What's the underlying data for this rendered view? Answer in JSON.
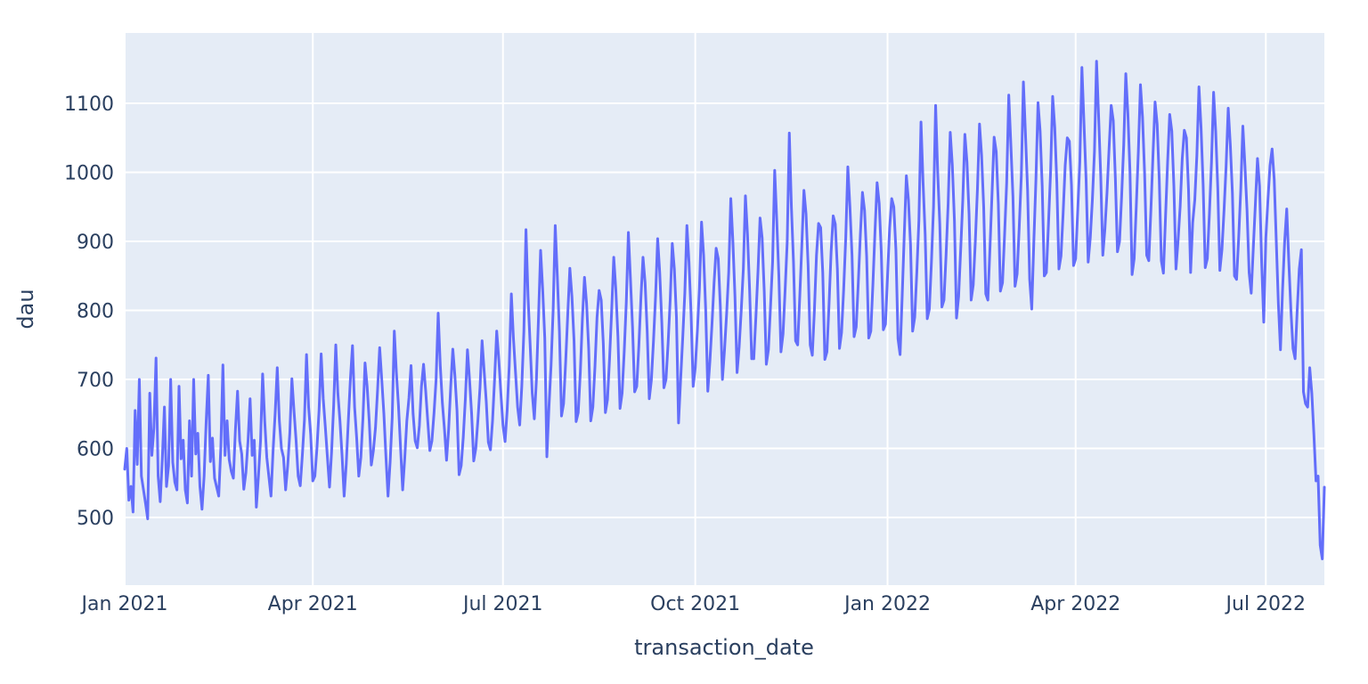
{
  "figure": {
    "kind": "plotly-style line figure",
    "title": ""
  },
  "colors": {
    "paper_bg": "#ffffff",
    "plot_bg": "#e5ecf6",
    "grid": "#ffffff",
    "line": "#636efa",
    "text": "#2a3f5f"
  },
  "chart_data": {
    "type": "line",
    "title": "",
    "xlabel": "transaction_date",
    "ylabel": "dau",
    "legend": false,
    "grid": true,
    "x_start_date": "2021-01-01",
    "x_frequency": "daily",
    "x_tick_labels": [
      "Jan 2021",
      "Apr 2021",
      "Jul 2021",
      "Oct 2021",
      "Jan 2022",
      "Apr 2022",
      "Jul 2022"
    ],
    "x_tick_days": [
      0,
      90,
      181,
      273,
      365,
      455,
      546
    ],
    "y_ticks": [
      500,
      600,
      700,
      800,
      900,
      1000,
      1100
    ],
    "y_range": [
      402,
      1202
    ],
    "x_range_days": [
      0,
      574
    ],
    "values": [
      570,
      600,
      525,
      545,
      508,
      655,
      577,
      700,
      560,
      540,
      520,
      498,
      680,
      590,
      630,
      731,
      560,
      523,
      585,
      660,
      545,
      575,
      700,
      580,
      551,
      540,
      690,
      585,
      612,
      540,
      521,
      640,
      560,
      700,
      592,
      622,
      545,
      512,
      560,
      640,
      706,
      581,
      615,
      557,
      544,
      531,
      601,
      721,
      590,
      640,
      584,
      567,
      557,
      628,
      683,
      611,
      592,
      541,
      565,
      610,
      672,
      590,
      612,
      515,
      560,
      611,
      708,
      640,
      587,
      559,
      531,
      597,
      651,
      717,
      640,
      600,
      587,
      540,
      575,
      622,
      701,
      655,
      612,
      560,
      546,
      590,
      641,
      736,
      660,
      620,
      553,
      560,
      601,
      655,
      737,
      672,
      631,
      587,
      544,
      595,
      663,
      750,
      680,
      640,
      590,
      531,
      577,
      640,
      701,
      749,
      660,
      615,
      560,
      587,
      644,
      724,
      690,
      640,
      576,
      597,
      630,
      685,
      746,
      700,
      651,
      588,
      531,
      580,
      645,
      770,
      710,
      662,
      601,
      540,
      586,
      640,
      673,
      720,
      650,
      611,
      601,
      633,
      690,
      722,
      684,
      640,
      597,
      611,
      651,
      700,
      796,
      720,
      666,
      628,
      583,
      628,
      690,
      744,
      705,
      655,
      562,
      575,
      616,
      672,
      743,
      700,
      650,
      582,
      600,
      641,
      688,
      756,
      712,
      668,
      609,
      598,
      640,
      701,
      770,
      729,
      680,
      634,
      610,
      655,
      720,
      824,
      760,
      710,
      660,
      634,
      690,
      770,
      917,
      820,
      750,
      680,
      643,
      700,
      790,
      887,
      830,
      760,
      588,
      660,
      720,
      800,
      923,
      850,
      770,
      647,
      665,
      726,
      795,
      861,
      820,
      756,
      639,
      652,
      710,
      788,
      848,
      810,
      745,
      640,
      660,
      718,
      790,
      829,
      815,
      752,
      652,
      671,
      730,
      800,
      877,
      830,
      762,
      658,
      680,
      740,
      812,
      913,
      845,
      775,
      682,
      690,
      748,
      818,
      877,
      840,
      770,
      672,
      699,
      755,
      820,
      904,
      855,
      782,
      688,
      700,
      752,
      815,
      897,
      860,
      790,
      637,
      700,
      760,
      825,
      923,
      870,
      795,
      690,
      717,
      770,
      832,
      928,
      880,
      800,
      683,
      726,
      780,
      840,
      890,
      875,
      805,
      700,
      743,
      795,
      855,
      962,
      900,
      820,
      710,
      747,
      800,
      860,
      966,
      910,
      830,
      730,
      730,
      790,
      856,
      934,
      905,
      828,
      722,
      743,
      805,
      870,
      1003,
      930,
      850,
      740,
      766,
      830,
      900,
      1057,
      950,
      870,
      756,
      750,
      820,
      895,
      974,
      940,
      865,
      750,
      735,
      800,
      880,
      926,
      920,
      855,
      729,
      740,
      808,
      885,
      937,
      925,
      860,
      745,
      768,
      830,
      905,
      1008,
      950,
      880,
      762,
      776,
      840,
      910,
      971,
      945,
      878,
      760,
      770,
      838,
      915,
      985,
      955,
      885,
      772,
      780,
      850,
      920,
      962,
      950,
      888,
      759,
      736,
      820,
      910,
      995,
      960,
      895,
      770,
      790,
      855,
      930,
      1073,
      985,
      910,
      788,
      802,
      870,
      950,
      1097,
      1000,
      925,
      805,
      815,
      880,
      955,
      1058,
      1010,
      930,
      789,
      820,
      888,
      960,
      1055,
      1015,
      940,
      815,
      837,
      900,
      975,
      1070,
      1025,
      950,
      824,
      815,
      890,
      970,
      1051,
      1030,
      955,
      828,
      840,
      910,
      985,
      1112,
      1040,
      965,
      835,
      853,
      920,
      995,
      1131,
      1055,
      975,
      845,
      802,
      900,
      990,
      1101,
      1060,
      980,
      850,
      855,
      925,
      1000,
      1110,
      1065,
      985,
      860,
      879,
      940,
      1010,
      1050,
      1045,
      982,
      865,
      875,
      945,
      1015,
      1152,
      1070,
      990,
      870,
      905,
      960,
      1030,
      1161,
      1080,
      995,
      880,
      918,
      970,
      1035,
      1097,
      1075,
      992,
      885,
      900,
      965,
      1040,
      1143,
      1085,
      1000,
      852,
      875,
      950,
      1030,
      1127,
      1080,
      998,
      880,
      872,
      945,
      1025,
      1102,
      1070,
      990,
      872,
      854,
      935,
      1015,
      1084,
      1060,
      980,
      860,
      901,
      950,
      1020,
      1061,
      1050,
      975,
      855,
      927,
      960,
      1025,
      1124,
      1065,
      982,
      862,
      875,
      940,
      1015,
      1116,
      1060,
      978,
      858,
      888,
      945,
      1010,
      1093,
      1040,
      970,
      850,
      845,
      905,
      975,
      1067,
      1010,
      945,
      855,
      825,
      890,
      955,
      1020,
      980,
      870,
      783,
      905,
      960,
      1010,
      1034,
      990,
      900,
      810,
      743,
      830,
      900,
      947,
      870,
      800,
      745,
      730,
      800,
      860,
      888,
      682,
      665,
      660,
      717,
      680,
      620,
      553,
      560,
      460,
      440,
      544
    ]
  }
}
